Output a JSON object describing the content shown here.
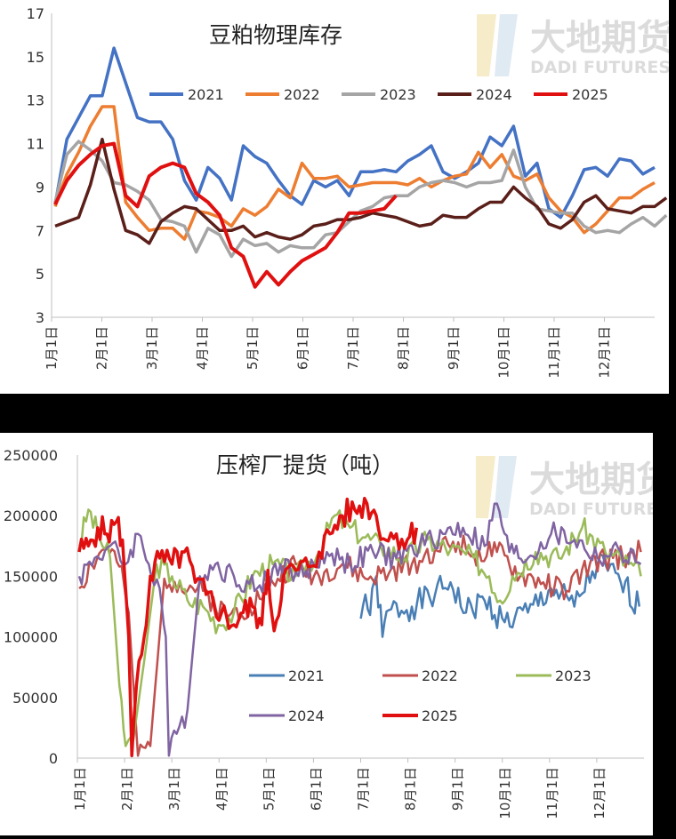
{
  "watermark": {
    "cn": "大地期货",
    "en": "DADI FUTURES"
  },
  "colors": {
    "2021": "#4472C4",
    "2022": "#ED7D31",
    "2023": "#A5A5A5",
    "2024": "#5B1F1A",
    "2025": "#E01010",
    "b2021": "#4A7FB5",
    "b2022": "#C0504D",
    "b2023": "#9BBB59",
    "b2024": "#8064A2",
    "b2025": "#E01010"
  },
  "chart_data": [
    {
      "type": "line",
      "title": "豆粕物理库存",
      "ylim": [
        3,
        17
      ],
      "yticks": [
        "3",
        "5",
        "7",
        "9",
        "11",
        "13",
        "15",
        "17"
      ],
      "months": [
        "1月1日",
        "2月1日",
        "3月1日",
        "4月1日",
        "5月1日",
        "6月1日",
        "7月1日",
        "8月1日",
        "9月1日",
        "10月1日",
        "11月1日",
        "12月1日"
      ],
      "legend_position": "top",
      "series": [
        {
          "name": "2021",
          "color": "#4472C4",
          "values": [
            8.2,
            11.2,
            12.2,
            13.2,
            13.2,
            15.4,
            13.8,
            12.2,
            12.0,
            12.0,
            11.2,
            9.3,
            8.4,
            9.9,
            9.4,
            8.4,
            10.9,
            10.4,
            10.1,
            9.3,
            8.6,
            8.2,
            9.3,
            9.0,
            9.3,
            8.6,
            9.7,
            9.7,
            9.8,
            9.7,
            10.2,
            10.5,
            10.9,
            9.7,
            9.4,
            9.7,
            10.1,
            11.3,
            10.9,
            11.8,
            9.5,
            10.1,
            8.0,
            7.6,
            8.6,
            9.8,
            9.9,
            9.5,
            10.3,
            10.2,
            9.6,
            9.9
          ]
        },
        {
          "name": "2022",
          "color": "#ED7D31",
          "values": [
            8.1,
            9.6,
            10.6,
            11.8,
            12.7,
            12.7,
            8.3,
            7.6,
            7.0,
            7.1,
            7.1,
            6.6,
            7.9,
            7.8,
            7.6,
            7.2,
            8.0,
            7.7,
            8.1,
            8.9,
            8.5,
            10.1,
            9.4,
            9.4,
            9.5,
            9.0,
            9.1,
            9.2,
            9.2,
            9.2,
            9.1,
            9.4,
            9.0,
            9.3,
            9.5,
            9.6,
            10.6,
            9.9,
            10.5,
            9.5,
            9.3,
            9.6,
            8.5,
            7.9,
            7.6,
            6.9,
            7.3,
            7.9,
            8.5,
            8.5,
            8.9,
            9.2
          ]
        },
        {
          "name": "2023",
          "color": "#A5A5A5",
          "values": [
            8.3,
            10.5,
            11.1,
            10.7,
            10.2,
            9.2,
            9.1,
            8.8,
            8.4,
            7.5,
            7.4,
            7.2,
            6.0,
            7.1,
            6.8,
            5.8,
            6.6,
            6.3,
            6.4,
            6.0,
            6.3,
            6.2,
            6.2,
            6.8,
            6.9,
            7.4,
            7.9,
            8.1,
            8.5,
            8.6,
            8.6,
            9.0,
            9.2,
            9.3,
            9.2,
            9.0,
            9.2,
            9.2,
            9.3,
            10.7,
            9.0,
            8.0,
            7.9,
            7.8,
            7.8,
            7.2,
            6.9,
            7.0,
            6.9,
            7.3,
            7.6,
            7.2,
            7.7
          ]
        },
        {
          "name": "2024",
          "color": "#5B1F1A",
          "values": [
            7.2,
            7.4,
            7.6,
            9.1,
            11.2,
            8.9,
            7.0,
            6.8,
            6.4,
            7.4,
            7.8,
            8.1,
            8.0,
            7.5,
            7.0,
            7.0,
            7.2,
            6.7,
            6.9,
            6.7,
            6.6,
            6.8,
            7.2,
            7.3,
            7.5,
            7.5,
            7.6,
            7.8,
            7.7,
            7.6,
            7.4,
            7.2,
            7.3,
            7.7,
            7.6,
            7.6,
            8.0,
            8.3,
            8.3,
            9.0,
            8.5,
            8.1,
            7.3,
            7.1,
            7.5,
            8.3,
            8.6,
            8.0,
            7.9,
            7.8,
            8.1,
            8.1,
            8.5
          ]
        },
        {
          "name": "2025",
          "color": "#E01010",
          "values": [
            8.2,
            9.3,
            10.0,
            10.5,
            10.9,
            11.0,
            8.6,
            8.1,
            9.5,
            9.9,
            10.1,
            9.9,
            8.7,
            8.3,
            7.7,
            6.2,
            5.8,
            4.4,
            5.1,
            4.5,
            5.1,
            5.6,
            5.9,
            6.2,
            6.9,
            7.8,
            7.8,
            7.9,
            8.0,
            8.6
          ]
        }
      ]
    },
    {
      "type": "line",
      "title": "压榨厂提货（吨）",
      "ylim": [
        0,
        250000
      ],
      "yticks": [
        "0",
        "50000",
        "100000",
        "150000",
        "200000",
        "250000"
      ],
      "months": [
        "1月1日",
        "2月1日",
        "3月1日",
        "4月1日",
        "5月1日",
        "6月1日",
        "7月1日",
        "8月1日",
        "9月1日",
        "10月1日",
        "11月1日",
        "12月1日"
      ],
      "legend_position": "bottom-left",
      "series": [
        {
          "name": "2021",
          "color": "#4A7FB5",
          "start_day": 182,
          "base": 130000,
          "amp": 12000,
          "seed": 1,
          "values": [
            [
              182,
              115000
            ],
            [
              185,
              135000
            ],
            [
              188,
              118000
            ],
            [
              192,
              150000
            ],
            [
              196,
              100000
            ],
            [
              200,
              122000
            ],
            [
              215,
              125000
            ],
            [
              230,
              135000
            ],
            [
              240,
              145000
            ],
            [
              250,
              120000
            ],
            [
              262,
              130000
            ],
            [
              275,
              112000
            ],
            [
              290,
              120000
            ],
            [
              305,
              140000
            ],
            [
              320,
              125000
            ],
            [
              335,
              160000
            ],
            [
              350,
              145000
            ],
            [
              362,
              125000
            ]
          ]
        },
        {
          "name": "2022",
          "color": "#C0504D",
          "base": 148000,
          "amp": 10000,
          "seed": 2,
          "values": [
            [
              0,
              140000
            ],
            [
              8,
              160000
            ],
            [
              18,
              175000
            ],
            [
              26,
              158000
            ],
            [
              32,
              120000
            ],
            [
              38,
              2000
            ],
            [
              46,
              10000
            ],
            [
              55,
              148000
            ],
            [
              65,
              145000
            ],
            [
              80,
              138000
            ],
            [
              95,
              118000
            ],
            [
              110,
              125000
            ],
            [
              125,
              145000
            ],
            [
              140,
              160000
            ],
            [
              155,
              150000
            ],
            [
              170,
              160000
            ],
            [
              185,
              148000
            ],
            [
              200,
              152000
            ],
            [
              215,
              160000
            ],
            [
              230,
              172000
            ],
            [
              245,
              178000
            ],
            [
              255,
              168000
            ],
            [
              270,
              170000
            ],
            [
              285,
              150000
            ],
            [
              300,
              145000
            ],
            [
              315,
              138000
            ],
            [
              330,
              160000
            ],
            [
              345,
              165000
            ],
            [
              363,
              170000
            ]
          ]
        },
        {
          "name": "2023",
          "color": "#9BBB59",
          "base": 160000,
          "amp": 10000,
          "seed": 3,
          "values": [
            [
              0,
              175000
            ],
            [
              6,
              205000
            ],
            [
              12,
              185000
            ],
            [
              20,
              165000
            ],
            [
              26,
              60000
            ],
            [
              30,
              10000
            ],
            [
              35,
              15000
            ],
            [
              42,
              80000
            ],
            [
              50,
              160000
            ],
            [
              60,
              150000
            ],
            [
              70,
              130000
            ],
            [
              80,
              125000
            ],
            [
              90,
              110000
            ],
            [
              100,
              120000
            ],
            [
              112,
              150000
            ],
            [
              125,
              160000
            ],
            [
              140,
              150000
            ],
            [
              155,
              170000
            ],
            [
              165,
              200000
            ],
            [
              175,
              190000
            ],
            [
              185,
              182000
            ],
            [
              195,
              175000
            ],
            [
              210,
              165000
            ],
            [
              225,
              180000
            ],
            [
              240,
              172000
            ],
            [
              255,
              165000
            ],
            [
              265,
              150000
            ],
            [
              272,
              130000
            ],
            [
              280,
              150000
            ],
            [
              295,
              170000
            ],
            [
              310,
              165000
            ],
            [
              325,
              190000
            ],
            [
              340,
              170000
            ],
            [
              355,
              160000
            ],
            [
              363,
              150000
            ]
          ]
        },
        {
          "name": "2024",
          "color": "#8064A2",
          "base": 165000,
          "amp": 10000,
          "seed": 4,
          "values": [
            [
              0,
              150000
            ],
            [
              10,
              165000
            ],
            [
              20,
              175000
            ],
            [
              30,
              160000
            ],
            [
              38,
              185000
            ],
            [
              45,
              160000
            ],
            [
              52,
              140000
            ],
            [
              56,
              100000
            ],
            [
              58,
              2000
            ],
            [
              63,
              20000
            ],
            [
              70,
              40000
            ],
            [
              78,
              150000
            ],
            [
              88,
              160000
            ],
            [
              100,
              150000
            ],
            [
              115,
              140000
            ],
            [
              130,
              160000
            ],
            [
              145,
              150000
            ],
            [
              160,
              170000
            ],
            [
              175,
              160000
            ],
            [
              190,
              170000
            ],
            [
              205,
              165000
            ],
            [
              220,
              175000
            ],
            [
              235,
              185000
            ],
            [
              248,
              190000
            ],
            [
              262,
              175000
            ],
            [
              270,
              210000
            ],
            [
              278,
              170000
            ],
            [
              290,
              165000
            ],
            [
              305,
              185000
            ],
            [
              320,
              180000
            ],
            [
              335,
              165000
            ],
            [
              350,
              170000
            ],
            [
              363,
              160000
            ]
          ]
        },
        {
          "name": "2025",
          "color": "#E01010",
          "base": 160000,
          "amp": 12000,
          "seed": 5,
          "values": [
            [
              0,
              170000
            ],
            [
              6,
              175000
            ],
            [
              12,
              190000
            ],
            [
              18,
              185000
            ],
            [
              24,
              195000
            ],
            [
              28,
              180000
            ],
            [
              32,
              100000
            ],
            [
              34,
              2000
            ],
            [
              37,
              60000
            ],
            [
              42,
              100000
            ],
            [
              46,
              150000
            ],
            [
              52,
              165000
            ],
            [
              60,
              160000
            ],
            [
              68,
              170000
            ],
            [
              75,
              145000
            ],
            [
              82,
              135000
            ],
            [
              92,
              120000
            ],
            [
              100,
              110000
            ],
            [
              106,
              120000
            ],
            [
              112,
              125000
            ],
            [
              118,
              110000
            ],
            [
              122,
              155000
            ],
            [
              126,
              105000
            ],
            [
              132,
              150000
            ],
            [
              140,
              155000
            ],
            [
              148,
              158000
            ],
            [
              155,
              170000
            ],
            [
              162,
              185000
            ],
            [
              170,
              200000
            ],
            [
              178,
              205000
            ],
            [
              186,
              210000
            ],
            [
              192,
              200000
            ],
            [
              198,
              180000
            ],
            [
              205,
              185000
            ],
            [
              212,
              180000
            ],
            [
              218,
              190000
            ]
          ]
        }
      ]
    }
  ]
}
